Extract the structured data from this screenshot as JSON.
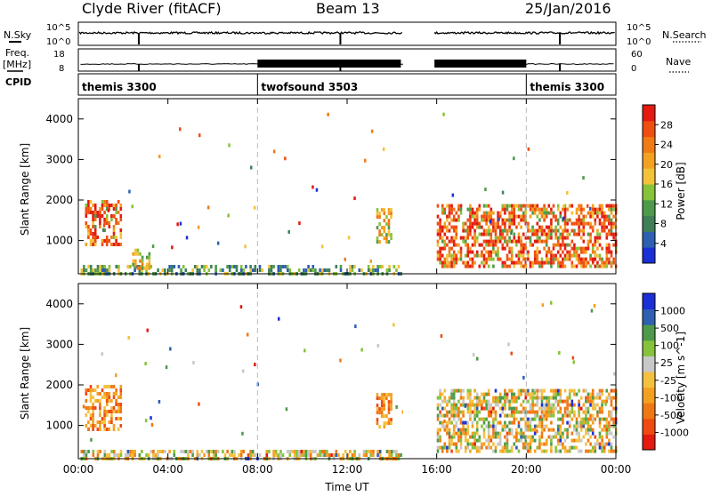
{
  "header": {
    "station": "Clyde River (fitACF)",
    "beam": "Beam 13",
    "date": "25/Jan/2016"
  },
  "left_labels": {
    "nsky": "N.Sky",
    "freq_line1": "Freq.",
    "freq_line2": "[MHz]",
    "cpid": "CPID"
  },
  "right_labels": {
    "nsearch": "N.Search",
    "nave": "Nave"
  },
  "strip_ticks": {
    "noise_left": [
      "10^5",
      "10^0"
    ],
    "noise_right": [
      "10^5",
      "10^0"
    ],
    "freq_left": [
      "18",
      "8"
    ],
    "freq_right": [
      "60",
      "0"
    ]
  },
  "cpid_labels": [
    {
      "text": "themis 3300",
      "start_hour": 0
    },
    {
      "text": "twofsound 3503",
      "start_hour": 8
    },
    {
      "text": "themis 3300",
      "start_hour": 20
    }
  ],
  "colors": {
    "background": "#ffffff",
    "axis": "#000000",
    "grid_dash": "#bbbbbb",
    "gap": "#ffffff"
  },
  "chart_data": [
    {
      "type": "heatmap",
      "name": "Power",
      "xlabel": "",
      "ylabel": "Slant Range [km]",
      "xlim": [
        0,
        24
      ],
      "ylim": [
        180,
        4500
      ],
      "yticks": [
        1000,
        2000,
        3000,
        4000
      ],
      "colorbar_label": "Power [dB]",
      "colorbar_ticks": [
        "28",
        "24",
        "20",
        "16",
        "12",
        "8",
        "4"
      ],
      "colorbar_colors": [
        "#1a2fd6",
        "#2f5fb0",
        "#3f7f58",
        "#4e9a4a",
        "#86c23a",
        "#f2c23a",
        "#f4a020",
        "#f07a14",
        "#ee4e10",
        "#e41a10"
      ],
      "data_gaps_hours": [
        [
          14.5,
          15.9
        ]
      ],
      "echo_regions": [
        {
          "t_start": 0.3,
          "t_end": 1.9,
          "r_min": 900,
          "r_max": 2000,
          "level": "high"
        },
        {
          "t_start": 0.1,
          "t_end": 14.4,
          "r_min": 200,
          "r_max": 400,
          "level": "low"
        },
        {
          "t_start": 2.4,
          "t_end": 3.2,
          "r_min": 300,
          "r_max": 800,
          "level": "medium"
        },
        {
          "t_start": 13.3,
          "t_end": 14.0,
          "r_min": 1000,
          "r_max": 1800,
          "level": "medium"
        },
        {
          "t_start": 16.0,
          "t_end": 24.0,
          "r_min": 400,
          "r_max": 1900,
          "level": "high"
        }
      ]
    },
    {
      "type": "heatmap",
      "name": "Velocity",
      "xlabel": "Time UT",
      "ylabel": "Slant Range [km]",
      "xlim": [
        0,
        24
      ],
      "ylim": [
        180,
        4500
      ],
      "yticks": [
        1000,
        2000,
        3000,
        4000
      ],
      "xtick_labels": [
        "00:00",
        "04:00",
        "08:00",
        "12:00",
        "16:00",
        "20:00",
        "00:00"
      ],
      "colorbar_label": "Velocity [m s^-1]",
      "colorbar_ticks": [
        "1000",
        "500",
        "100",
        "25",
        "-25",
        "-100",
        "-500",
        "-1000"
      ],
      "colorbar_colors": [
        "#e41a10",
        "#f04a10",
        "#f07814",
        "#f4a020",
        "#f4c040",
        "#c8c8c8",
        "#86c23a",
        "#4e9a4a",
        "#2f5fb0",
        "#1a2fd6"
      ],
      "data_gaps_hours": [
        [
          14.5,
          15.9
        ]
      ],
      "echo_regions": [
        {
          "t_start": 0.3,
          "t_end": 1.9,
          "r_min": 900,
          "r_max": 2000,
          "level": "orange"
        },
        {
          "t_start": 0.1,
          "t_end": 14.4,
          "r_min": 200,
          "r_max": 400,
          "level": "mixed"
        },
        {
          "t_start": 13.3,
          "t_end": 14.0,
          "r_min": 1000,
          "r_max": 1800,
          "level": "orange"
        },
        {
          "t_start": 16.0,
          "t_end": 24.0,
          "r_min": 400,
          "r_max": 1900,
          "level": "mixed"
        }
      ]
    }
  ]
}
